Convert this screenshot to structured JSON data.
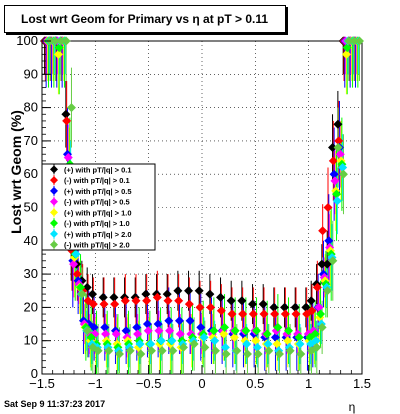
{
  "chart_data": {
    "type": "scatter",
    "title": "Lost wrt Geom for Primary vs   η at pT > 0.11",
    "xlabel": "η",
    "ylabel": "Lost wrt Geom (%)",
    "xlim": [
      -1.5,
      1.5
    ],
    "ylim": [
      0,
      100
    ],
    "xticks": [
      -1.5,
      -1,
      -0.5,
      0,
      0.5,
      1,
      1.5
    ],
    "xtick_labels": [
      "−1.5",
      "−1",
      "−0.5",
      "0",
      "0.5",
      "1",
      "1.5"
    ],
    "yticks": [
      0,
      10,
      20,
      30,
      40,
      50,
      60,
      70,
      80,
      90,
      100
    ],
    "ytick_labels": [
      "0",
      "10",
      "20",
      "30",
      "40",
      "50",
      "60",
      "70",
      "80",
      "90",
      "100"
    ],
    "grid": true,
    "legend_position": "left-middle",
    "series": [
      {
        "name": "(+) with pT/|q| > 0.1",
        "color": "#000000",
        "marker": "diamond",
        "x": [
          -1.45,
          -1.4,
          -1.35,
          -1.3,
          -1.25,
          -1.2,
          -1.15,
          -1.1,
          -1.05,
          -1.0,
          -0.9,
          -0.8,
          -0.7,
          -0.6,
          -0.5,
          -0.4,
          -0.3,
          -0.2,
          -0.1,
          0.0,
          0.1,
          0.2,
          0.3,
          0.4,
          0.5,
          0.6,
          0.7,
          0.8,
          0.9,
          1.0,
          1.05,
          1.1,
          1.15,
          1.2,
          1.25,
          1.3,
          1.35,
          1.4,
          1.45
        ],
        "y": [
          100,
          100,
          100,
          100,
          78,
          38,
          33,
          28,
          26,
          24,
          23,
          23,
          23,
          23,
          24,
          24,
          24,
          25,
          25,
          25,
          24,
          23,
          22,
          22,
          21,
          21,
          20,
          20,
          20,
          20,
          22,
          27,
          33,
          33,
          68,
          75,
          100,
          100,
          100
        ]
      },
      {
        "name": "(-) with pT/|q| > 0.1",
        "color": "#ff0000",
        "marker": "diamond",
        "x": [
          -1.45,
          -1.4,
          -1.35,
          -1.3,
          -1.25,
          -1.2,
          -1.15,
          -1.1,
          -1.05,
          -1.0,
          -0.9,
          -0.8,
          -0.7,
          -0.6,
          -0.5,
          -0.4,
          -0.3,
          -0.2,
          -0.1,
          0.0,
          0.1,
          0.2,
          0.3,
          0.4,
          0.5,
          0.6,
          0.7,
          0.8,
          0.9,
          1.0,
          1.05,
          1.1,
          1.15,
          1.2,
          1.25,
          1.3,
          1.35,
          1.4,
          1.45
        ],
        "y": [
          100,
          100,
          100,
          100,
          76,
          37,
          30,
          25,
          22,
          21,
          21,
          21,
          22,
          22,
          22,
          23,
          22,
          22,
          21,
          20,
          20,
          19,
          18,
          18,
          18,
          18,
          18,
          18,
          18,
          18,
          19,
          26,
          43,
          50,
          64,
          70,
          100,
          100,
          100
        ]
      },
      {
        "name": "(+) with pT/|q| > 0.5",
        "color": "#0000ff",
        "marker": "diamond",
        "x": [
          -1.45,
          -1.4,
          -1.35,
          -1.3,
          -1.25,
          -1.2,
          -1.15,
          -1.1,
          -1.05,
          -1.0,
          -0.9,
          -0.8,
          -0.7,
          -0.6,
          -0.5,
          -0.4,
          -0.3,
          -0.2,
          -0.1,
          0.0,
          0.1,
          0.2,
          0.3,
          0.4,
          0.5,
          0.6,
          0.7,
          0.8,
          0.9,
          1.0,
          1.05,
          1.1,
          1.15,
          1.2,
          1.25,
          1.3,
          1.35,
          1.4,
          1.45
        ],
        "y": [
          100,
          100,
          100,
          100,
          66,
          34,
          28,
          16,
          15,
          14,
          14,
          13,
          13,
          14,
          15,
          15,
          16,
          16,
          16,
          14,
          13,
          13,
          12,
          12,
          12,
          11,
          11,
          11,
          11,
          11,
          12,
          20,
          30,
          40,
          60,
          68,
          100,
          100,
          100
        ]
      },
      {
        "name": "(-) with pT/|q| > 0.5",
        "color": "#ff00ff",
        "marker": "diamond",
        "x": [
          -1.45,
          -1.4,
          -1.35,
          -1.3,
          -1.25,
          -1.2,
          -1.15,
          -1.1,
          -1.05,
          -1.0,
          -0.9,
          -0.8,
          -0.7,
          -0.6,
          -0.5,
          -0.4,
          -0.3,
          -0.2,
          -0.1,
          0.0,
          0.1,
          0.2,
          0.3,
          0.4,
          0.5,
          0.6,
          0.7,
          0.8,
          0.9,
          1.0,
          1.05,
          1.1,
          1.15,
          1.2,
          1.25,
          1.3,
          1.35,
          1.4,
          1.45
        ],
        "y": [
          100,
          100,
          100,
          100,
          65,
          33,
          27,
          15,
          12,
          12,
          12,
          12,
          11,
          12,
          13,
          13,
          13,
          12,
          12,
          12,
          12,
          13,
          13,
          13,
          13,
          12,
          13,
          12,
          12,
          12,
          13,
          20,
          29,
          38,
          58,
          66,
          100,
          100,
          100
        ]
      },
      {
        "name": "(+) with pT/|q| > 1.0",
        "color": "#ffff00",
        "marker": "diamond",
        "x": [
          -1.45,
          -1.4,
          -1.35,
          -1.3,
          -1.25,
          -1.2,
          -1.15,
          -1.1,
          -1.05,
          -1.0,
          -0.9,
          -0.8,
          -0.7,
          -0.6,
          -0.5,
          -0.4,
          -0.3,
          -0.2,
          -0.1,
          0.0,
          0.1,
          0.2,
          0.3,
          0.4,
          0.5,
          0.6,
          0.7,
          0.8,
          0.9,
          1.0,
          1.05,
          1.1,
          1.15,
          1.2,
          1.25,
          1.3,
          1.35,
          1.4,
          1.45
        ],
        "y": [
          100,
          100,
          96,
          100,
          62,
          35,
          26,
          14,
          10,
          9,
          10,
          9,
          10,
          8,
          9,
          9,
          9,
          8,
          10,
          11,
          11,
          12,
          11,
          10,
          10,
          9,
          9,
          10,
          9,
          10,
          11,
          17,
          28,
          37,
          55,
          64,
          96,
          100,
          100
        ]
      },
      {
        "name": "(-) with pT/|q| > 1.0",
        "color": "#00ff00",
        "marker": "diamond",
        "x": [
          -1.45,
          -1.4,
          -1.35,
          -1.3,
          -1.25,
          -1.2,
          -1.15,
          -1.1,
          -1.05,
          -1.0,
          -0.9,
          -0.8,
          -0.7,
          -0.6,
          -0.5,
          -0.4,
          -0.3,
          -0.2,
          -0.1,
          0.0,
          0.1,
          0.2,
          0.3,
          0.4,
          0.5,
          0.6,
          0.7,
          0.8,
          0.9,
          1.0,
          1.05,
          1.1,
          1.15,
          1.2,
          1.25,
          1.3,
          1.35,
          1.4,
          1.45
        ],
        "y": [
          100,
          100,
          98,
          100,
          63,
          36,
          26,
          14,
          11,
          9,
          9,
          8,
          9,
          10,
          9,
          10,
          10,
          10,
          11,
          12,
          13,
          14,
          13,
          13,
          13,
          12,
          14,
          13,
          11,
          11,
          12,
          18,
          27,
          36,
          54,
          63,
          98,
          100,
          100
        ]
      },
      {
        "name": "(+) with pT/|q| > 2.0",
        "color": "#00e5ff",
        "marker": "diamond",
        "x": [
          -1.45,
          -1.4,
          -1.35,
          -1.3,
          -1.25,
          -1.2,
          -1.15,
          -1.1,
          -1.05,
          -1.0,
          -0.9,
          -0.8,
          -0.7,
          -0.6,
          -0.5,
          -0.4,
          -0.3,
          -0.2,
          -0.1,
          0.0,
          0.1,
          0.2,
          0.3,
          0.4,
          0.5,
          0.6,
          0.7,
          0.8,
          0.9,
          1.0,
          1.05,
          1.1,
          1.15,
          1.2,
          1.25,
          1.3,
          1.35,
          1.4,
          1.45
        ],
        "y": [
          100,
          100,
          100,
          100,
          60,
          36,
          24,
          13,
          9,
          8,
          8,
          7,
          8,
          9,
          9,
          10,
          10,
          9,
          10,
          11,
          10,
          8,
          7,
          9,
          8,
          9,
          7,
          8,
          9,
          9,
          10,
          15,
          26,
          35,
          52,
          62,
          100,
          100,
          100
        ]
      },
      {
        "name": "(-) with pT/|q| > 2.0",
        "color": "#66cc44",
        "marker": "diamond",
        "x": [
          -1.45,
          -1.4,
          -1.35,
          -1.3,
          -1.25,
          -1.2,
          -1.15,
          -1.1,
          -1.05,
          -1.0,
          -0.9,
          -0.8,
          -0.7,
          -0.6,
          -0.5,
          -0.4,
          -0.3,
          -0.2,
          -0.1,
          0.0,
          0.1,
          0.2,
          0.3,
          0.4,
          0.5,
          0.6,
          0.7,
          0.8,
          0.9,
          1.0,
          1.05,
          1.1,
          1.15,
          1.2,
          1.25,
          1.3,
          1.35,
          1.4,
          1.45
        ],
        "y": [
          100,
          100,
          100,
          100,
          80,
          40,
          24,
          13,
          8,
          7,
          7,
          6,
          7,
          6,
          7,
          7,
          7,
          8,
          9,
          8,
          7,
          6,
          7,
          6,
          6,
          7,
          6,
          7,
          6,
          7,
          8,
          14,
          25,
          34,
          68,
          60,
          100,
          100,
          100
        ]
      }
    ]
  },
  "footer": {
    "timestamp": "Sat Sep  9 11:37:23 2017"
  }
}
